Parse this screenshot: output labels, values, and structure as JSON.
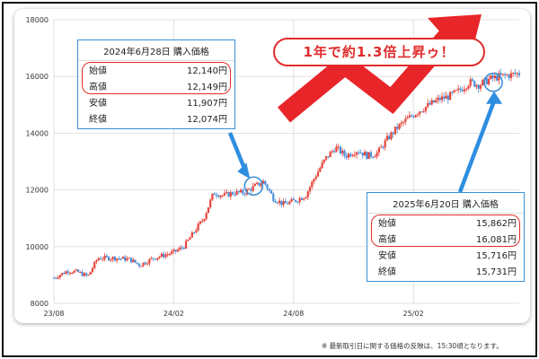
{
  "chart_data": {
    "type": "candlestick",
    "title": "",
    "xlabel": "",
    "ylabel": "",
    "ylim": [
      8000,
      18000
    ],
    "y_ticks": [
      "8000",
      "10000",
      "12000",
      "14000",
      "16000",
      "18000"
    ],
    "x_ticks": [
      "23/08",
      "24/02",
      "24/08",
      "25/02"
    ],
    "x_tick_months": [
      0,
      6,
      12,
      18
    ],
    "x_range_months": [
      0,
      23.3
    ],
    "grid": true,
    "legend": "none",
    "colors": {
      "up": "#e8453c",
      "down": "#4a90d9",
      "grid": "#d9d9d9"
    },
    "trend_points": [
      [
        0.0,
        8900
      ],
      [
        0.7,
        9150
      ],
      [
        1.2,
        9100
      ],
      [
        1.7,
        8950
      ],
      [
        2.2,
        9600
      ],
      [
        3.0,
        9600
      ],
      [
        3.8,
        9550
      ],
      [
        4.3,
        9350
      ],
      [
        5.0,
        9600
      ],
      [
        5.5,
        9700
      ],
      [
        6.0,
        9800
      ],
      [
        6.5,
        10000
      ],
      [
        7.0,
        10500
      ],
      [
        7.5,
        11000
      ],
      [
        8.0,
        11900
      ],
      [
        8.5,
        11800
      ],
      [
        9.0,
        11900
      ],
      [
        9.5,
        11900
      ],
      [
        10.0,
        12100
      ],
      [
        10.5,
        12300
      ],
      [
        11.0,
        11700
      ],
      [
        11.5,
        11500
      ],
      [
        12.0,
        11600
      ],
      [
        12.6,
        11800
      ],
      [
        13.1,
        12500
      ],
      [
        13.6,
        13100
      ],
      [
        14.1,
        13500
      ],
      [
        14.6,
        13200
      ],
      [
        15.2,
        13400
      ],
      [
        15.7,
        13200
      ],
      [
        16.2,
        13300
      ],
      [
        16.7,
        13800
      ],
      [
        17.2,
        14200
      ],
      [
        17.7,
        14500
      ],
      [
        18.3,
        14800
      ],
      [
        18.8,
        15000
      ],
      [
        19.3,
        15200
      ],
      [
        19.8,
        15300
      ],
      [
        20.3,
        15500
      ],
      [
        20.8,
        15800
      ],
      [
        21.3,
        15700
      ],
      [
        21.8,
        15900
      ],
      [
        22.3,
        16000
      ],
      [
        22.8,
        16050
      ],
      [
        23.2,
        16100
      ]
    ]
  },
  "callouts": [
    {
      "title": "2024年6月28日 購入価格",
      "rows": [
        {
          "label": "始値",
          "value": "12,140円"
        },
        {
          "label": "高値",
          "value": "12,149円"
        },
        {
          "label": "安値",
          "value": "11,907円"
        },
        {
          "label": "終値",
          "value": "12,074円"
        }
      ]
    },
    {
      "title": "2025年6月20日 購入価格",
      "rows": [
        {
          "label": "始値",
          "value": "15,862円"
        },
        {
          "label": "高値",
          "value": "16,081円"
        },
        {
          "label": "安値",
          "value": "15,716円"
        },
        {
          "label": "終値",
          "value": "15,731円"
        }
      ]
    }
  ],
  "headline": "1年で約1.3倍上昇ゥ！",
  "footnote": "※ 最新取引日に関する価格の反映は、15:30頃となります。"
}
